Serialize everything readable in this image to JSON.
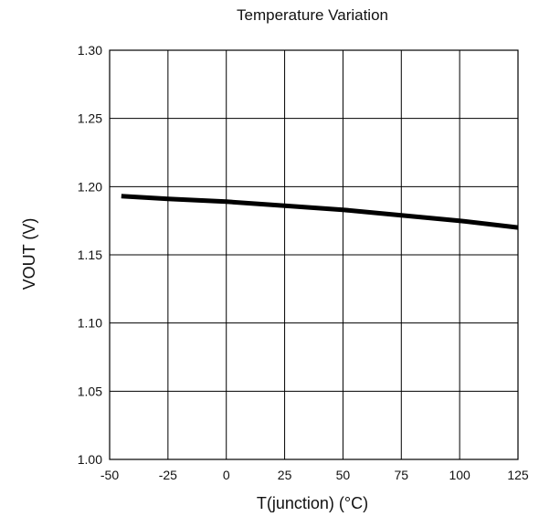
{
  "chart_data": {
    "type": "line",
    "title": "Temperature Variation",
    "xlabel": "T(junction) (°C)",
    "ylabel": "VOUT (V)",
    "xlim": [
      -50,
      125
    ],
    "ylim": [
      1.0,
      1.3
    ],
    "xticks": [
      "-50",
      "-25",
      "0",
      "25",
      "50",
      "75",
      "100",
      "125"
    ],
    "yticks": [
      "1.00",
      "1.05",
      "1.10",
      "1.15",
      "1.20",
      "1.25",
      "1.30"
    ],
    "grid": true,
    "legend": "none",
    "series": [
      {
        "x": [
          -45,
          -25,
          0,
          25,
          50,
          75,
          100,
          125
        ],
        "y": [
          1.193,
          1.191,
          1.189,
          1.186,
          1.183,
          1.179,
          1.175,
          1.17
        ]
      }
    ]
  }
}
